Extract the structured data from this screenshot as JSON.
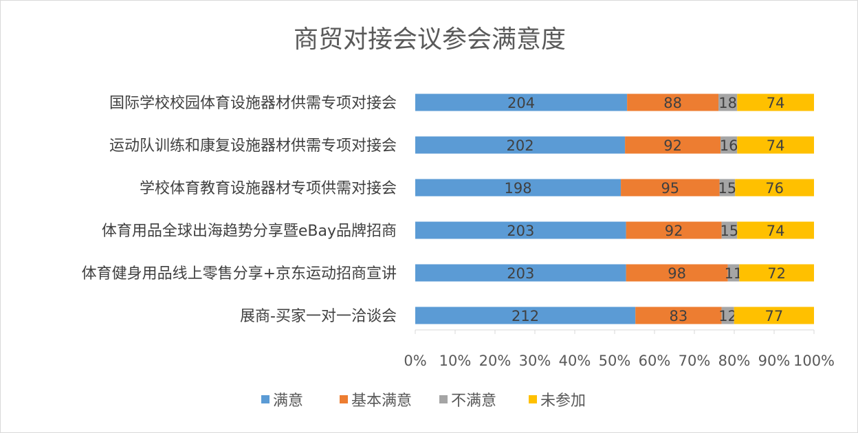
{
  "chart_data": {
    "type": "bar",
    "orientation": "horizontal",
    "stacking": "percent",
    "title": "商贸对接会议参会满意度",
    "categories": [
      "国际学校校园体育设施器材供需专项对接会",
      "运动队训练和康复设施器材供需专项对接会",
      "学校体育教育设施器材专项供需对接会",
      "体育用品全球出海趋势分享暨eBay品牌招商",
      "体育健身用品线上零售分享+京东运动招商宣讲",
      "展商-买家一对一洽谈会"
    ],
    "series": [
      {
        "name": "满意",
        "color": "#5b9bd5",
        "values": [
          204,
          202,
          198,
          203,
          203,
          212
        ]
      },
      {
        "name": "基本满意",
        "color": "#ed7d31",
        "values": [
          88,
          92,
          95,
          92,
          98,
          83
        ]
      },
      {
        "name": "不满意",
        "color": "#a5a5a5",
        "values": [
          18,
          16,
          15,
          15,
          11,
          12
        ]
      },
      {
        "name": "未参加",
        "color": "#ffc000",
        "values": [
          74,
          74,
          76,
          74,
          72,
          77
        ]
      }
    ],
    "xticks": [
      "0%",
      "10%",
      "20%",
      "30%",
      "40%",
      "50%",
      "60%",
      "70%",
      "80%",
      "90%",
      "100%"
    ],
    "xlim": [
      0,
      100
    ],
    "legend_position": "bottom",
    "grid": false
  }
}
